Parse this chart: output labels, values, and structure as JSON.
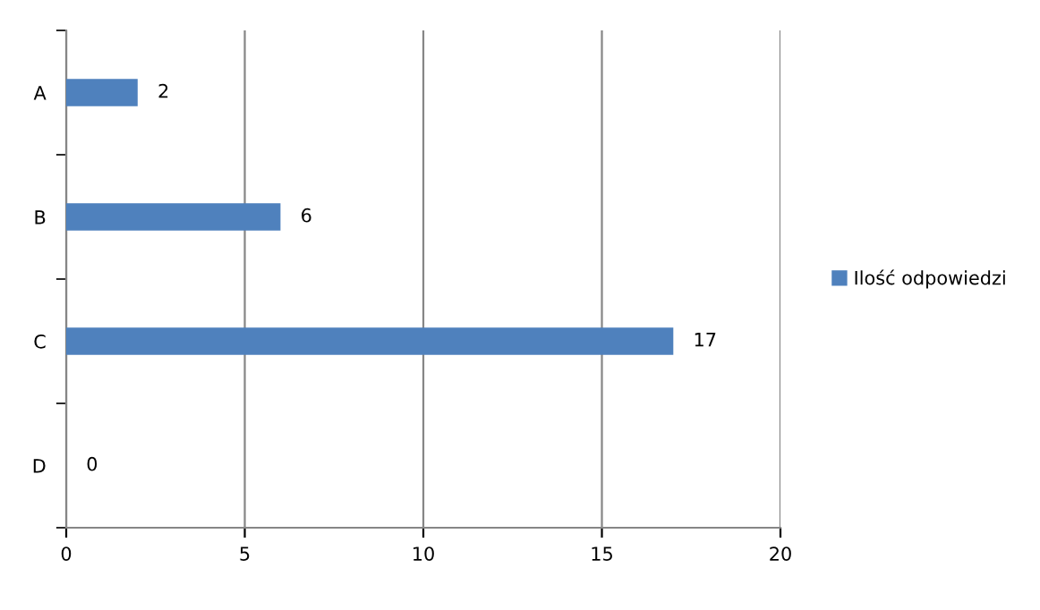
{
  "chart_data": {
    "type": "bar",
    "orientation": "horizontal",
    "categories": [
      "A",
      "B",
      "C",
      "D"
    ],
    "series": [
      {
        "name": "Ilość odpowiedzi",
        "color": "#4f81bd",
        "values": [
          2,
          6,
          17,
          0
        ]
      }
    ],
    "xlim": [
      0,
      20
    ],
    "xticks": [
      0,
      5,
      10,
      15,
      20
    ],
    "grid": "x",
    "legend": "right",
    "data_labels": true
  }
}
